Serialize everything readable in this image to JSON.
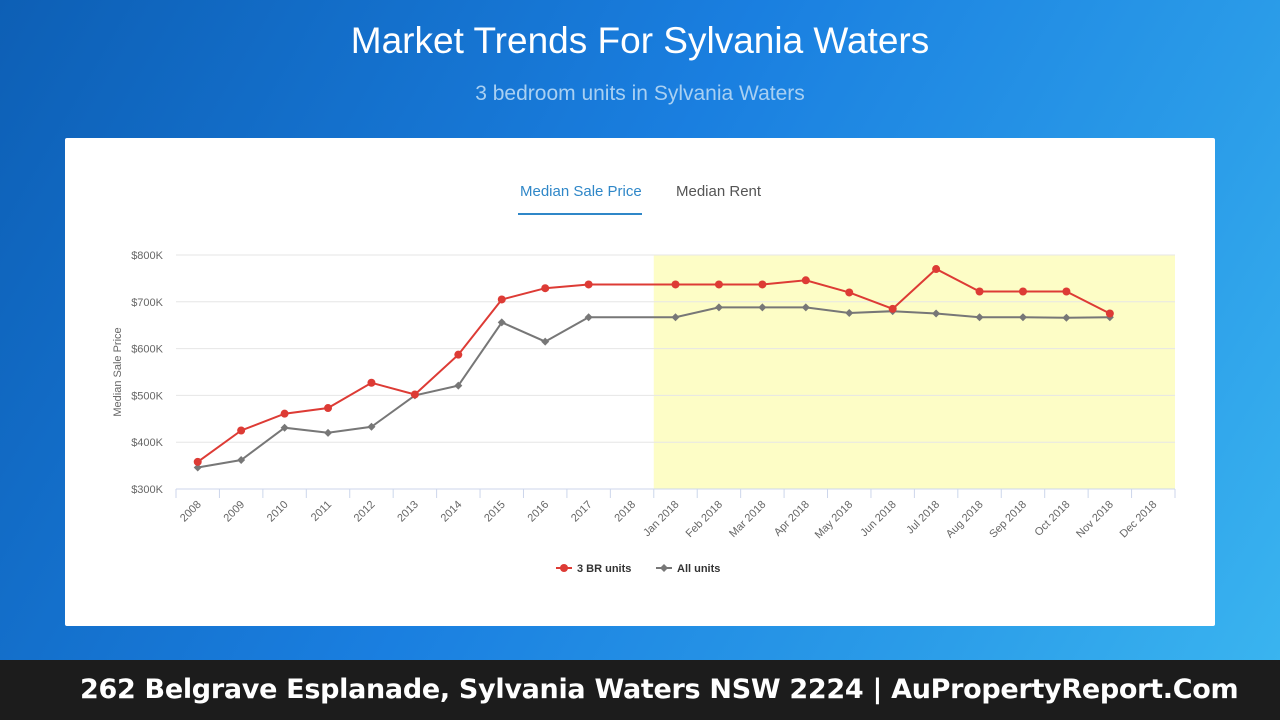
{
  "header": {
    "title": "Market Trends For Sylvania Waters",
    "subtitle": "3 bedroom units in Sylvania Waters"
  },
  "tabs": [
    {
      "label": "Median Sale Price",
      "active": true
    },
    {
      "label": "Median Rent",
      "active": false
    }
  ],
  "footer": {
    "text": "262 Belgrave Esplanade, Sylvania Waters NSW 2224 | AuPropertyReport.Com"
  },
  "colors": {
    "series_3br": "#dd3b35",
    "series_all": "#777777",
    "highlight": "#fdfdc6",
    "accent": "#2f87c8"
  },
  "chart_data": {
    "type": "line",
    "ylabel": "Median Sale Price",
    "ylim": [
      300000,
      800000
    ],
    "ytick_values": [
      300000,
      400000,
      500000,
      600000,
      700000,
      800000
    ],
    "ytick_labels": [
      "$300K",
      "$400K",
      "$500K",
      "$600K",
      "$700K",
      "$800K"
    ],
    "categories": [
      "2008",
      "2009",
      "2010",
      "2011",
      "2012",
      "2013",
      "2014",
      "2015",
      "2016",
      "2017",
      "2018",
      "Jan 2018",
      "Feb 2018",
      "Mar 2018",
      "Apr 2018",
      "May 2018",
      "Jun 2018",
      "Jul 2018",
      "Aug 2018",
      "Sep 2018",
      "Oct 2018",
      "Nov 2018",
      "Dec 2018"
    ],
    "highlight_range": [
      "Jan 2018",
      "Dec 2018"
    ],
    "grid": true,
    "legend_position": "bottom",
    "series": [
      {
        "name": "3 BR units",
        "marker": "circle",
        "values": [
          358000,
          425000,
          461000,
          473000,
          527000,
          502000,
          587000,
          705000,
          729000,
          737000,
          null,
          737000,
          737000,
          737000,
          746000,
          720000,
          685000,
          770000,
          722000,
          722000,
          722000,
          675000,
          null
        ]
      },
      {
        "name": "All units",
        "marker": "diamond",
        "values": [
          346000,
          362000,
          431000,
          420000,
          433000,
          500000,
          521000,
          656000,
          615000,
          667000,
          null,
          667000,
          688000,
          688000,
          688000,
          676000,
          680000,
          675000,
          667000,
          667000,
          666000,
          667000,
          null
        ]
      }
    ]
  }
}
